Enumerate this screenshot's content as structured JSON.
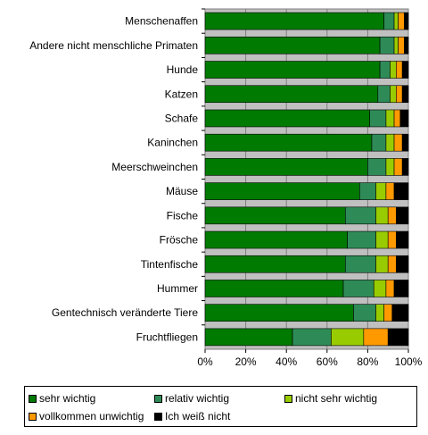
{
  "chart_data": {
    "type": "bar",
    "orientation": "horizontal",
    "stacked": "percent",
    "categories": [
      "Menschenaffen",
      "Andere nicht menschliche Primaten",
      "Hunde",
      "Katzen",
      "Schafe",
      "Kaninchen",
      "Meerschweinchen",
      "Mäuse",
      "Fische",
      "Frösche",
      "Tintenfische",
      "Hummer",
      "Gentechnisch veränderte Tiere",
      "Fruchtfliegen"
    ],
    "series": [
      {
        "name": "sehr wichtig",
        "color": "#007a00",
        "values": [
          88,
          86,
          86,
          85,
          81,
          82,
          80,
          76,
          69,
          70,
          69,
          68,
          73,
          43
        ]
      },
      {
        "name": "relativ wichtig",
        "color": "#2e8b57",
        "values": [
          5,
          7,
          5,
          6,
          8,
          7,
          9,
          8,
          15,
          14,
          15,
          15,
          11,
          19
        ]
      },
      {
        "name": "nicht sehr wichtig",
        "color": "#99cc00",
        "values": [
          2,
          2,
          3,
          3,
          4,
          4,
          4,
          5,
          6,
          6,
          6,
          6,
          4,
          16
        ]
      },
      {
        "name": "vollkommen unwichtig",
        "color": "#ff9900",
        "values": [
          3,
          3,
          3,
          3,
          3,
          4,
          4,
          4,
          4,
          4,
          4,
          4,
          4,
          12
        ]
      },
      {
        "name": "Ich weiß nicht",
        "color": "#000000",
        "values": [
          2,
          2,
          3,
          3,
          4,
          3,
          3,
          7,
          6,
          6,
          6,
          7,
          8,
          10
        ]
      }
    ],
    "xaxis": {
      "ticks": [
        "0%",
        "20%",
        "40%",
        "60%",
        "80%",
        "100%"
      ],
      "range": [
        0,
        100
      ]
    },
    "plot_background": "#c0c0c0",
    "grid": "vertical",
    "legend_position": "bottom"
  }
}
